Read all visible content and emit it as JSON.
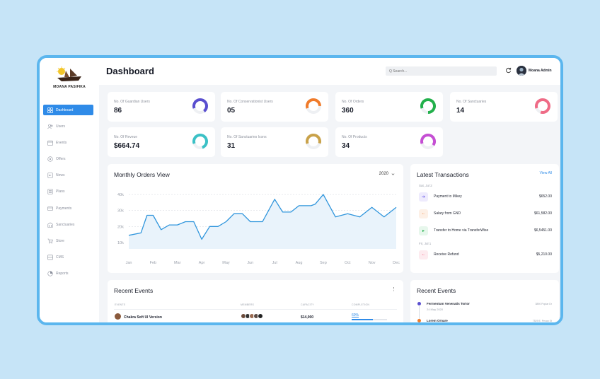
{
  "brand": {
    "name": "MOANA PASIFIKA"
  },
  "sidebar": {
    "items": [
      {
        "label": "Dashboard",
        "icon": "grid-icon",
        "active": true
      },
      {
        "label": "Users",
        "icon": "users-icon"
      },
      {
        "label": "Events",
        "icon": "calendar-icon"
      },
      {
        "label": "Offers",
        "icon": "tag-icon"
      },
      {
        "label": "News",
        "icon": "news-icon"
      },
      {
        "label": "Plans",
        "icon": "list-icon"
      },
      {
        "label": "Payments",
        "icon": "card-icon"
      },
      {
        "label": "Sanctuaries",
        "icon": "building-icon"
      },
      {
        "label": "Store",
        "icon": "cart-icon"
      },
      {
        "label": "CMS",
        "icon": "cms-icon"
      },
      {
        "label": "Reports",
        "icon": "report-icon"
      }
    ]
  },
  "header": {
    "title": "Dashboard",
    "search_placeholder": "Q Search...",
    "username": "Moana Admin"
  },
  "stats": [
    {
      "label": "No. Of Guardian Users",
      "value": "86",
      "color": "#5a4fcf",
      "fill": 0.7
    },
    {
      "label": "No. Of Conservationist Users",
      "value": "05",
      "color": "#f07b2a",
      "fill": 0.55
    },
    {
      "label": "No. Of Orders",
      "value": "360",
      "color": "#22b04b",
      "fill": 0.8
    },
    {
      "label": "No. Of Sanctuaries",
      "value": "14",
      "color": "#ef6b86",
      "fill": 0.85
    },
    {
      "label": "No. Of Reveue",
      "value": "$664.74",
      "color": "#3cc1c6",
      "fill": 0.75
    },
    {
      "label": "No. Of Sanctuaries Icons",
      "value": "31",
      "color": "#c9a24a",
      "fill": 0.6
    },
    {
      "label": "No. Of Products",
      "value": "34",
      "color": "#c54fd3",
      "fill": 0.65
    }
  ],
  "orders_chart": {
    "title": "Monthly Orders View",
    "year": "2020",
    "chart_data": {
      "type": "area",
      "title": "Monthly Orders View",
      "xlabel": "",
      "ylabel": "",
      "yticks": [
        "40k",
        "30k",
        "20k",
        "10k"
      ],
      "ytick_values": [
        40000,
        30000,
        20000,
        10000
      ],
      "ylim": [
        6000,
        44000
      ],
      "xticks": [
        "Jan",
        "Feb",
        "Mar",
        "Apr",
        "May",
        "Jun",
        "Jul",
        "Aug",
        "Sep",
        "Oct",
        "Nov",
        "Dec"
      ],
      "x": [
        0,
        0.5,
        0.75,
        1,
        1.33,
        1.67,
        2,
        2.33,
        2.67,
        3,
        3.33,
        3.67,
        4,
        4.33,
        4.67,
        5,
        5.5,
        6,
        6.33,
        6.67,
        7,
        7.5,
        7.67,
        8,
        8.5,
        9,
        9.5,
        10,
        10.5,
        11
      ],
      "values": [
        14500,
        16000,
        27000,
        27000,
        18000,
        21000,
        21000,
        23000,
        23000,
        12000,
        20000,
        20000,
        23000,
        28000,
        28000,
        23000,
        23000,
        37000,
        29000,
        29000,
        33000,
        33000,
        34000,
        40000,
        26000,
        28000,
        26000,
        32000,
        26000,
        32000
      ],
      "grid": true,
      "line_color": "#2f95dc"
    }
  },
  "transactions": {
    "title": "Latest Transactions",
    "view_all": "View All",
    "groups": [
      {
        "date": "Sat, Jul 2",
        "items": [
          {
            "name": "Payment to Mikey",
            "amount": "$652.00",
            "icon": "arrow-right-icon",
            "color": "#6b5de8",
            "bg": "#eeebfd",
            "glyph": "➔"
          },
          {
            "name": "Salary from GND",
            "amount": "$61,582.00",
            "icon": "arrow-left-icon",
            "color": "#f07b2a",
            "bg": "#fdf0e6",
            "glyph": "←"
          },
          {
            "name": "Transfer to Home via TransferWise",
            "amount": "$6,5451.00",
            "icon": "play-icon",
            "color": "#22b04b",
            "bg": "#e7f7ec",
            "glyph": "▸"
          }
        ]
      },
      {
        "date": "Fri, Jul 1",
        "items": [
          {
            "name": "Receive Refund",
            "amount": "$5,210.00",
            "icon": "arrow-left-icon",
            "color": "#ef4b6d",
            "bg": "#fdebef",
            "glyph": "←"
          }
        ]
      }
    ]
  },
  "recent_events_table": {
    "title": "Recent Events",
    "columns": [
      "EVENTS",
      "MEMBERS",
      "CAPACITY",
      "COMPLETION"
    ],
    "rows": [
      {
        "name": "Chakra Soft UI Version",
        "capacity": "$14,000",
        "completion": "60%",
        "progress": 0.6
      }
    ]
  },
  "recent_events_timeline": {
    "title": "Recent Events",
    "items": [
      {
        "title": "Fermentum Venenatis Tortor",
        "date": "24 May 2020",
        "right": "3890 Poplar Dr",
        "color": "#5a4fcf"
      },
      {
        "title": "Lorem Ornare",
        "date": "",
        "right": "7529 E. Pecan St",
        "color": "#f07b2a"
      }
    ]
  }
}
